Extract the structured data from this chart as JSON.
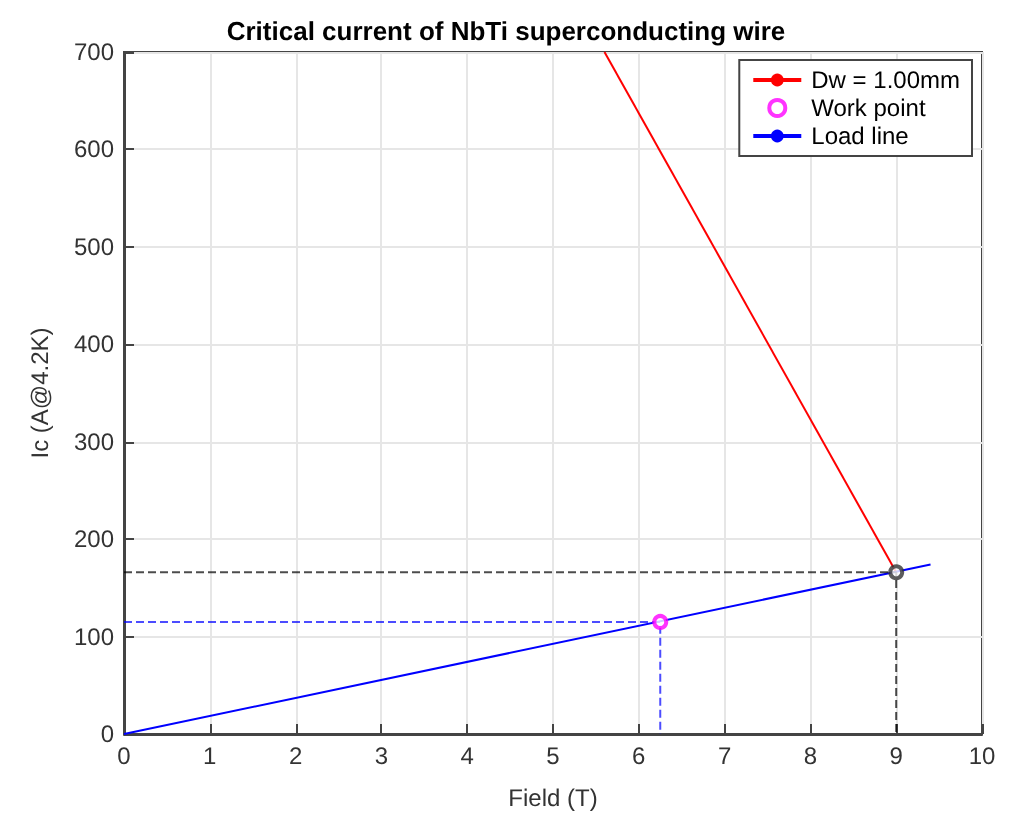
{
  "chart_data": {
    "type": "line",
    "title": "Critical current of NbTi superconducting wire",
    "xlabel": "Field (T)",
    "ylabel": "Ic (A@4.2K)",
    "xlim": [
      0,
      10
    ],
    "xticks": [
      0,
      1,
      2,
      3,
      4,
      5,
      6,
      7,
      8,
      9,
      10
    ],
    "ylim": [
      0,
      700
    ],
    "yticks": [
      0,
      100,
      200,
      300,
      400,
      500,
      600,
      700
    ],
    "grid": true,
    "legend": "top right",
    "series": [
      {
        "name": "Dw = 1.00mm",
        "color": "#ff0000",
        "marker": "none",
        "line_style": "solid",
        "x": [
          5.6,
          9
        ],
        "values": [
          700,
          166
        ]
      },
      {
        "name": "Work point",
        "type": "scatter",
        "color": "#ff00ff",
        "marker": "circle",
        "x": [
          6.25
        ],
        "values": [
          115
        ]
      },
      {
        "name": "Load line",
        "color": "#0000ff",
        "marker": "none",
        "line_style": "solid",
        "x": [
          0,
          9.4
        ],
        "values": [
          0,
          174
        ]
      },
      {
        "color": "#000000",
        "marker": "none",
        "line_style": "dashed",
        "x": [
          0,
          9,
          9
        ],
        "values": [
          166,
          166,
          0
        ]
      },
      {
        "color": "#0000ff",
        "marker": "none",
        "line_style": "dashed",
        "x": [
          0,
          6.25,
          6.25
        ],
        "values": [
          115,
          115,
          0
        ]
      },
      {
        "type": "scatter",
        "color": "#333333",
        "marker": "circle",
        "x": [
          9
        ],
        "values": [
          166
        ]
      }
    ]
  }
}
